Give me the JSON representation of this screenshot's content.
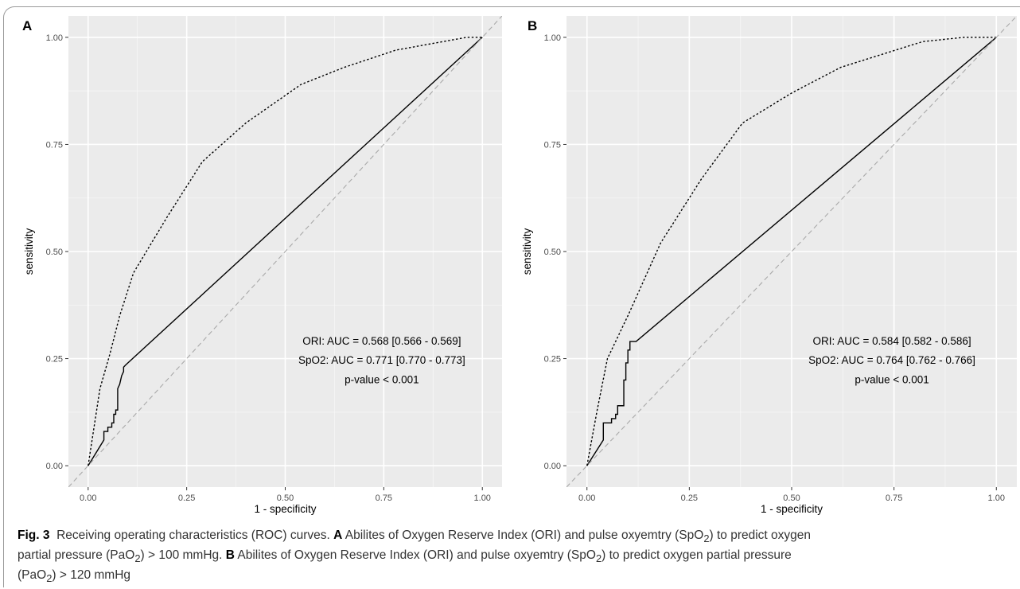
{
  "chart_data": [
    {
      "type": "line",
      "panel_label": "A",
      "xlabel": "1 - specificity",
      "ylabel": "sensitivity",
      "xlim": [
        0,
        1
      ],
      "ylim": [
        0,
        1
      ],
      "x_ticks": [
        "0.00",
        "0.25",
        "0.50",
        "0.75",
        "1.00"
      ],
      "y_ticks": [
        "0.00",
        "0.25",
        "0.50",
        "0.75",
        "1.00"
      ],
      "grid": true,
      "background": "#ebebeb",
      "annotation": [
        "ORI: AUC = 0.568 [0.566 - 0.569]",
        "SpO2: AUC = 0.771 [0.770 - 0.773]",
        "p-value < 0.001"
      ],
      "series": [
        {
          "style": "solid",
          "color": "#000000",
          "points": [
            [
              0,
              0
            ],
            [
              0.04,
              0.06
            ],
            [
              0.04,
              0.08
            ],
            [
              0.05,
              0.08
            ],
            [
              0.05,
              0.09
            ],
            [
              0.06,
              0.09
            ],
            [
              0.06,
              0.1
            ],
            [
              0.065,
              0.1
            ],
            [
              0.065,
              0.12
            ],
            [
              0.07,
              0.12
            ],
            [
              0.07,
              0.13
            ],
            [
              0.075,
              0.13
            ],
            [
              0.075,
              0.18
            ],
            [
              0.08,
              0.19
            ],
            [
              0.085,
              0.21
            ],
            [
              0.09,
              0.22
            ],
            [
              0.09,
              0.23
            ],
            [
              0.095,
              0.235
            ],
            [
              1,
              1
            ]
          ]
        },
        {
          "style": "dotted",
          "color": "#000000",
          "points": [
            [
              0,
              0
            ],
            [
              0.015,
              0.09
            ],
            [
              0.03,
              0.18
            ],
            [
              0.055,
              0.26
            ],
            [
              0.08,
              0.35
            ],
            [
              0.115,
              0.45
            ],
            [
              0.2,
              0.58
            ],
            [
              0.29,
              0.71
            ],
            [
              0.4,
              0.8
            ],
            [
              0.54,
              0.89
            ],
            [
              0.65,
              0.93
            ],
            [
              0.78,
              0.97
            ],
            [
              0.9,
              0.99
            ],
            [
              0.96,
              1.0
            ],
            [
              1,
              1
            ]
          ]
        },
        {
          "style": "dashed",
          "color": "#a9a9a9",
          "points": [
            [
              -0.05,
              -0.05
            ],
            [
              1.05,
              1.05
            ]
          ]
        }
      ]
    },
    {
      "type": "line",
      "panel_label": "B",
      "xlabel": "1 - specificity",
      "ylabel": "sensitivity",
      "xlim": [
        0,
        1
      ],
      "ylim": [
        0,
        1
      ],
      "x_ticks": [
        "0.00",
        "0.25",
        "0.50",
        "0.75",
        "1.00"
      ],
      "y_ticks": [
        "0.00",
        "0.25",
        "0.50",
        "0.75",
        "1.00"
      ],
      "grid": true,
      "background": "#ebebeb",
      "annotation": [
        "ORI: AUC = 0.584 [0.582 - 0.586]",
        "SpO2: AUC = 0.764 [0.762 - 0.766]",
        "p-value < 0.001"
      ],
      "series": [
        {
          "style": "solid",
          "color": "#000000",
          "points": [
            [
              0,
              0
            ],
            [
              0.04,
              0.06
            ],
            [
              0.04,
              0.1
            ],
            [
              0.06,
              0.1
            ],
            [
              0.06,
              0.11
            ],
            [
              0.07,
              0.11
            ],
            [
              0.07,
              0.12
            ],
            [
              0.075,
              0.12
            ],
            [
              0.075,
              0.14
            ],
            [
              0.09,
              0.14
            ],
            [
              0.09,
              0.2
            ],
            [
              0.095,
              0.2
            ],
            [
              0.095,
              0.24
            ],
            [
              0.1,
              0.24
            ],
            [
              0.1,
              0.27
            ],
            [
              0.105,
              0.27
            ],
            [
              0.105,
              0.29
            ],
            [
              0.12,
              0.29
            ],
            [
              1,
              1
            ]
          ]
        },
        {
          "style": "dotted",
          "color": "#000000",
          "points": [
            [
              0,
              0
            ],
            [
              0.025,
              0.13
            ],
            [
              0.05,
              0.25
            ],
            [
              0.1,
              0.35
            ],
            [
              0.18,
              0.52
            ],
            [
              0.28,
              0.67
            ],
            [
              0.38,
              0.8
            ],
            [
              0.5,
              0.87
            ],
            [
              0.62,
              0.93
            ],
            [
              0.72,
              0.96
            ],
            [
              0.82,
              0.99
            ],
            [
              0.92,
              1.0
            ],
            [
              1,
              1
            ]
          ]
        },
        {
          "style": "dashed",
          "color": "#a9a9a9",
          "points": [
            [
              -0.05,
              -0.05
            ],
            [
              1.05,
              1.05
            ]
          ]
        }
      ]
    }
  ],
  "caption": {
    "fig_label": "Fig. 3",
    "intro": "Receiving operating characteristics (ROC) curves.",
    "a_label": "A",
    "a_text_1": "Abilites of Oxygen Reserve Index (ORI) and pulse oxyemtry (SpO",
    "a_sub_1": "2",
    "a_text_2": ") to predict oxygen",
    "a_text_3": "partial pressure (PaO",
    "a_sub_2": "2",
    "a_text_4": ") > 100 mmHg.",
    "b_label": "B",
    "b_text_1": "Abilites of Oxygen Reserve Index (ORI) and pulse oxyemtry (SpO",
    "b_sub_1": "2",
    "b_text_2": ") to predict oxygen partial pressure",
    "b_text_3": "(PaO",
    "b_sub_2": "2",
    "b_text_4": ") > 120 mmHg"
  }
}
